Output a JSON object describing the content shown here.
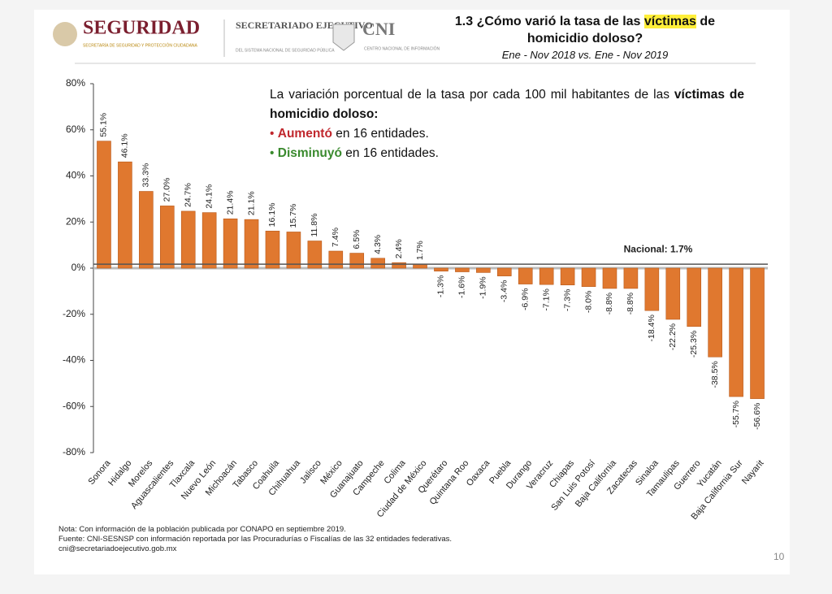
{
  "header": {
    "brand": "SEGURIDAD",
    "brand_sub": "SECRETARÍA DE SEGURIDAD Y PROTECCIÓN CIUDADANA",
    "secretariado": "SECRETARIADO EJECUTIVO",
    "secretariado_sub": "DEL SISTEMA NACIONAL DE SEGURIDAD PÚBLICA",
    "cni": "CNI",
    "cni_sub": "CENTRO NACIONAL DE INFORMACIÓN"
  },
  "chart_data": {
    "type": "bar",
    "title_parts": [
      "1.3 ¿Cómo varió la tasa de las",
      "víctimas",
      "de homicidio doloso?"
    ],
    "subtitle": "Ene - Nov 2018 vs. Ene - Nov 2019",
    "annotation": {
      "text": "La variación porcentual de la tasa por cada 100 mil habitantes de las",
      "bold": "víctimas de homicidio doloso:",
      "increase": {
        "label": "Aumentó",
        "text": "en 16 entidades.",
        "color": "#c0272d"
      },
      "decrease": {
        "label": "Disminuyó",
        "text": "en 16 entidades.",
        "color": "#3a8a2e"
      }
    },
    "categories": [
      "Sonora",
      "Hidalgo",
      "Morelos",
      "Aguascalientes",
      "Tlaxcala",
      "Nuevo León",
      "Michoacán",
      "Tabasco",
      "Coahuila",
      "Chihuahua",
      "Jalisco",
      "México",
      "Guanajuato",
      "Campeche",
      "Colima",
      "Ciudad de México",
      "Querétaro",
      "Quintana Roo",
      "Oaxaca",
      "Puebla",
      "Durango",
      "Veracruz",
      "Chiapas",
      "San Luis Potosí",
      "Baja California",
      "Zacatecas",
      "Sinaloa",
      "Tamaulipas",
      "Guerrero",
      "Yucatán",
      "Baja California Sur",
      "Nayarit"
    ],
    "values": [
      55.1,
      46.1,
      33.3,
      27.0,
      24.7,
      24.1,
      21.4,
      21.1,
      16.1,
      15.7,
      11.8,
      7.4,
      6.5,
      4.3,
      2.4,
      1.7,
      -1.3,
      -1.6,
      -1.9,
      -3.4,
      -6.9,
      -7.1,
      -7.3,
      -8.0,
      -8.8,
      -8.8,
      -18.4,
      -22.2,
      -25.3,
      -38.5,
      -55.7,
      -56.6
    ],
    "value_labels": [
      "55.1%",
      "46.1%",
      "33.3%",
      "27.0%",
      "24.7%",
      "24.1%",
      "21.4%",
      "21.1%",
      "16.1%",
      "15.7%",
      "11.8%",
      "7.4%",
      "6.5%",
      "4.3%",
      "2.4%",
      "1.7%",
      "-1.3%",
      "-1.6%",
      "-1.9%",
      "-3.4%",
      "-6.9%",
      "-7.1%",
      "-7.3%",
      "-8.0%",
      "-8.8%",
      "-8.8%",
      "-18.4%",
      "-22.2%",
      "-25.3%",
      "-38.5%",
      "-55.7%",
      "-56.6%"
    ],
    "color": "#e0782f",
    "ylim": [
      -80,
      80
    ],
    "yticks": [
      {
        "value": -80,
        "label": "-80%"
      },
      {
        "value": -60,
        "label": "-60%"
      },
      {
        "value": -40,
        "label": "-40%"
      },
      {
        "value": -20,
        "label": "-20%"
      },
      {
        "value": 0,
        "label": "0%"
      },
      {
        "value": 20,
        "label": "20%"
      },
      {
        "value": 40,
        "label": "40%"
      },
      {
        "value": 60,
        "label": "60%"
      },
      {
        "value": 80,
        "label": "80%"
      }
    ],
    "reference": {
      "value": 1.7,
      "label": "Nacional: 1.7%"
    },
    "grid": false
  },
  "notes": [
    "Nota: Con información de la población publicada por CONAPO en septiembre 2019.",
    "Fuente: CNI-SESNSP con información reportada por las Procuradurías o Fiscalías de las 32 entidades federativas.",
    "cni@secretariadoejecutivo.gob.mx"
  ],
  "page_number": "10"
}
